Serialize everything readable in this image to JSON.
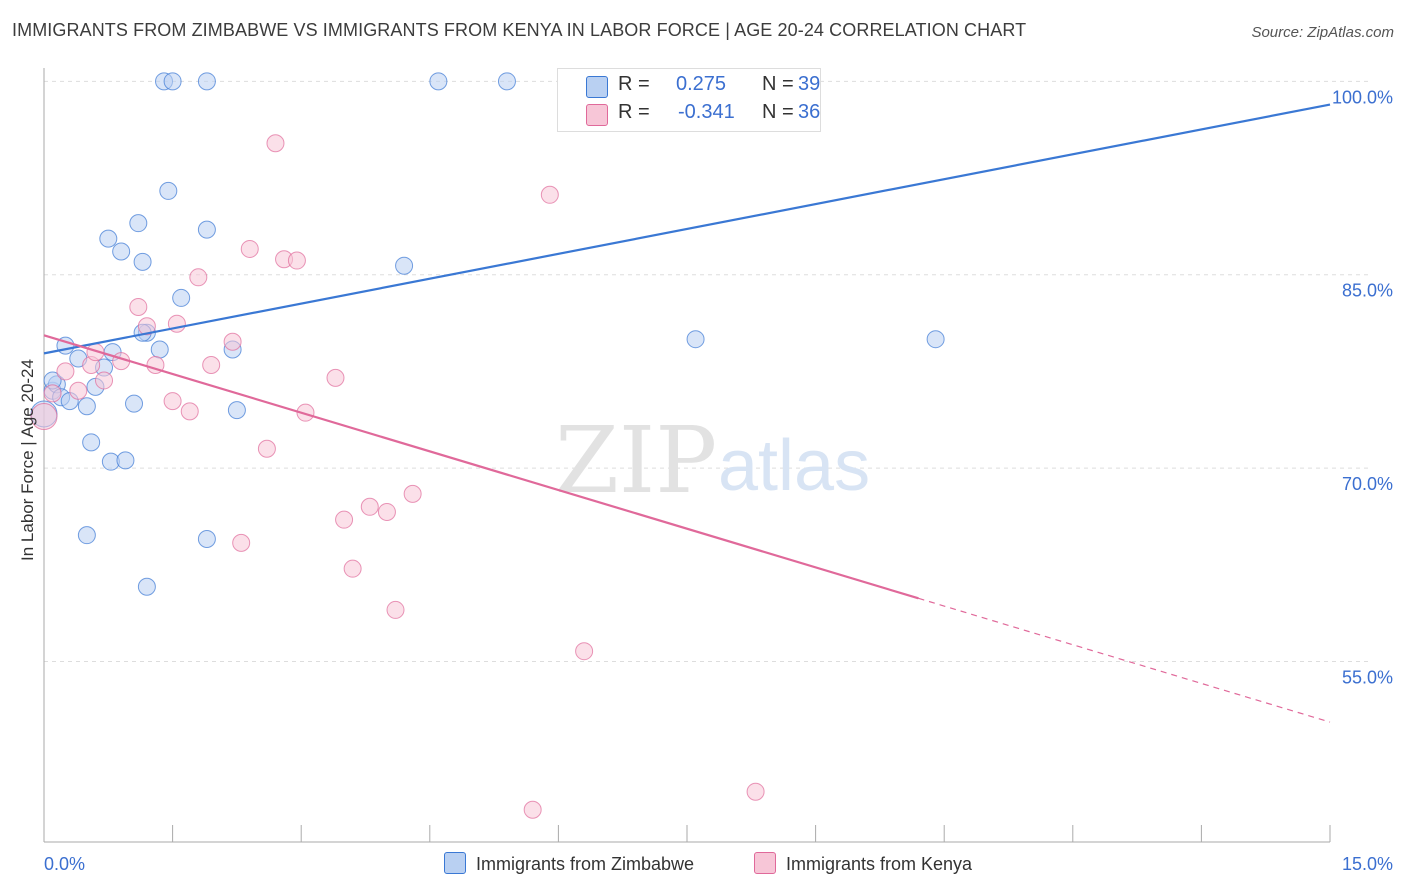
{
  "title": "IMMIGRANTS FROM ZIMBABWE VS IMMIGRANTS FROM KENYA IN LABOR FORCE | AGE 20-24 CORRELATION CHART",
  "source": "Source: ZipAtlas.com",
  "watermark": {
    "zip": "ZIP",
    "atlas": "atlas"
  },
  "legend": {
    "rows": [
      {
        "r_label": "R =",
        "r_value": "0.275",
        "n_label": "N =",
        "n_value": "39"
      },
      {
        "r_label": "R =",
        "r_value": "-0.341",
        "n_label": "N =",
        "n_value": "36"
      }
    ]
  },
  "colors": {
    "zimbabwe": "#3a78d4",
    "zimbabwe_fill": "#b9d0f2",
    "kenya": "#e0699a",
    "kenya_fill": "#f7c6d7",
    "tick_label": "#3b6fd0",
    "grid": "#dddddd"
  },
  "chart_data": {
    "type": "scatter",
    "title": "IMMIGRANTS FROM ZIMBABWE VS IMMIGRANTS FROM KENYA IN LABOR FORCE | AGE 20-24 CORRELATION CHART",
    "xlabel": "",
    "ylabel": "In Labor Force | Age 20-24",
    "xlim": [
      0,
      15
    ],
    "ylim": [
      41,
      101.5
    ],
    "x_tick_labels": [
      "0.0%",
      "15.0%"
    ],
    "y_ticks": [
      55,
      70,
      85,
      100
    ],
    "y_tick_labels": [
      "55.0%",
      "70.0%",
      "85.0%",
      "100.0%"
    ],
    "grid": true,
    "legend_position": "top-center",
    "series": [
      {
        "name": "Immigrants from Zimbabwe",
        "r": 0.275,
        "n": 39,
        "trend": {
          "x": [
            0,
            15
          ],
          "y": [
            78.9,
            98.2
          ],
          "dashed_from": null
        },
        "points": [
          {
            "x": 0.0,
            "y": 74.2
          },
          {
            "x": 0.1,
            "y": 76.0
          },
          {
            "x": 0.15,
            "y": 76.5
          },
          {
            "x": 0.2,
            "y": 75.5
          },
          {
            "x": 0.25,
            "y": 79.5
          },
          {
            "x": 0.3,
            "y": 75.2
          },
          {
            "x": 0.4,
            "y": 78.5
          },
          {
            "x": 0.5,
            "y": 74.8
          },
          {
            "x": 0.55,
            "y": 72.0
          },
          {
            "x": 0.6,
            "y": 76.3
          },
          {
            "x": 0.75,
            "y": 87.8
          },
          {
            "x": 0.78,
            "y": 70.5
          },
          {
            "x": 0.8,
            "y": 79.0
          },
          {
            "x": 0.9,
            "y": 86.8
          },
          {
            "x": 0.95,
            "y": 70.6
          },
          {
            "x": 0.7,
            "y": 77.8
          },
          {
            "x": 1.05,
            "y": 75.0
          },
          {
            "x": 1.1,
            "y": 89.0
          },
          {
            "x": 1.15,
            "y": 86.0
          },
          {
            "x": 1.2,
            "y": 80.5
          },
          {
            "x": 1.35,
            "y": 79.2
          },
          {
            "x": 1.45,
            "y": 91.5
          },
          {
            "x": 1.6,
            "y": 83.2
          },
          {
            "x": 1.9,
            "y": 88.5
          },
          {
            "x": 2.25,
            "y": 74.5
          },
          {
            "x": 2.2,
            "y": 79.2
          },
          {
            "x": 0.5,
            "y": 64.8
          },
          {
            "x": 1.9,
            "y": 64.5
          },
          {
            "x": 1.2,
            "y": 60.8
          },
          {
            "x": 1.4,
            "y": 100.0
          },
          {
            "x": 1.5,
            "y": 100.0
          },
          {
            "x": 1.9,
            "y": 100.0
          },
          {
            "x": 4.6,
            "y": 100.0
          },
          {
            "x": 5.4,
            "y": 100.0
          },
          {
            "x": 4.2,
            "y": 85.7
          },
          {
            "x": 7.6,
            "y": 80.0
          },
          {
            "x": 10.4,
            "y": 80.0
          },
          {
            "x": 0.1,
            "y": 76.8
          },
          {
            "x": 1.15,
            "y": 80.5
          }
        ]
      },
      {
        "name": "Immigrants from Kenya",
        "r": -0.341,
        "n": 36,
        "trend": {
          "x": [
            0,
            15
          ],
          "y": [
            80.3,
            50.3
          ],
          "dashed_from": 10.2
        },
        "points": [
          {
            "x": 0.0,
            "y": 74.0
          },
          {
            "x": 0.1,
            "y": 75.8
          },
          {
            "x": 0.25,
            "y": 77.5
          },
          {
            "x": 0.4,
            "y": 76.0
          },
          {
            "x": 0.55,
            "y": 78.0
          },
          {
            "x": 0.7,
            "y": 76.8
          },
          {
            "x": 0.9,
            "y": 78.3
          },
          {
            "x": 1.1,
            "y": 82.5
          },
          {
            "x": 1.2,
            "y": 81.0
          },
          {
            "x": 1.3,
            "y": 78.0
          },
          {
            "x": 1.5,
            "y": 75.2
          },
          {
            "x": 1.55,
            "y": 81.2
          },
          {
            "x": 1.7,
            "y": 74.4
          },
          {
            "x": 1.8,
            "y": 84.8
          },
          {
            "x": 1.95,
            "y": 78.0
          },
          {
            "x": 2.2,
            "y": 79.8
          },
          {
            "x": 2.3,
            "y": 64.2
          },
          {
            "x": 2.4,
            "y": 87.0
          },
          {
            "x": 2.6,
            "y": 71.5
          },
          {
            "x": 2.7,
            "y": 95.2
          },
          {
            "x": 2.8,
            "y": 86.2
          },
          {
            "x": 2.95,
            "y": 86.1
          },
          {
            "x": 3.05,
            "y": 74.3
          },
          {
            "x": 3.4,
            "y": 77.0
          },
          {
            "x": 3.5,
            "y": 66.0
          },
          {
            "x": 3.6,
            "y": 62.2
          },
          {
            "x": 3.8,
            "y": 67.0
          },
          {
            "x": 4.0,
            "y": 66.6
          },
          {
            "x": 4.1,
            "y": 59.0
          },
          {
            "x": 4.3,
            "y": 68.0
          },
          {
            "x": 5.7,
            "y": 43.5
          },
          {
            "x": 5.9,
            "y": 91.2
          },
          {
            "x": 6.3,
            "y": 55.8
          },
          {
            "x": 8.2,
            "y": 100.0
          },
          {
            "x": 8.3,
            "y": 44.9
          },
          {
            "x": 0.6,
            "y": 79.0
          }
        ]
      }
    ]
  },
  "bottom_legend": [
    "Immigrants from Zimbabwe",
    "Immigrants from Kenya"
  ]
}
